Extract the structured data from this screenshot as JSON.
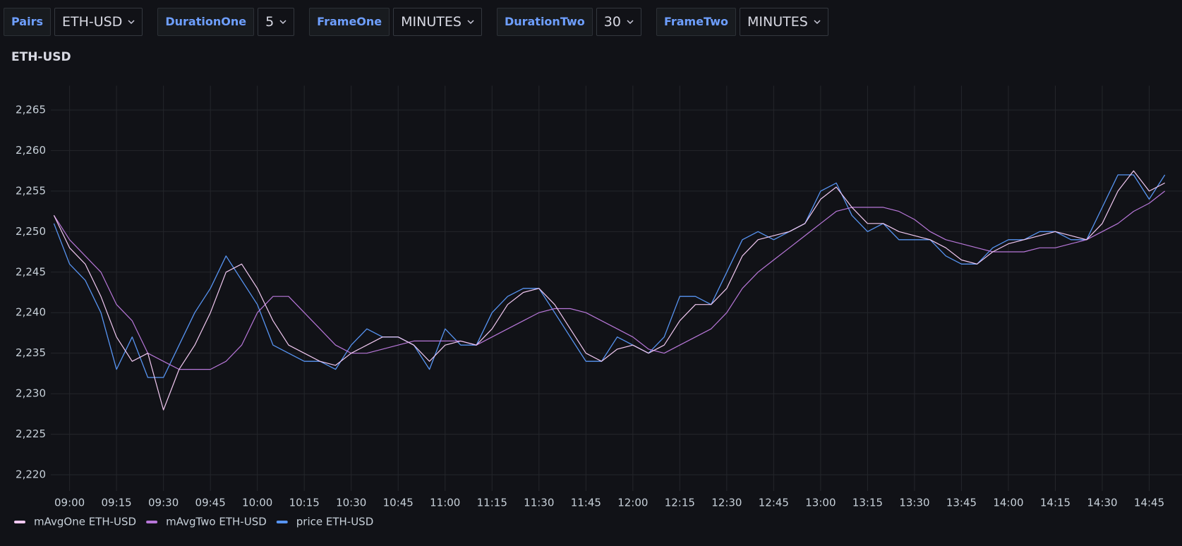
{
  "controls": [
    {
      "label": "Pairs",
      "value": "ETH-USD"
    },
    {
      "label": "DurationOne",
      "value": 5
    },
    {
      "label": "FrameOne",
      "value": "MINUTES"
    },
    {
      "label": "DurationTwo",
      "value": 30
    },
    {
      "label": "FrameTwo",
      "value": "MINUTES"
    }
  ],
  "chart_data": {
    "type": "line",
    "title": "ETH-USD",
    "x": [
      "08:55",
      "09:00",
      "09:05",
      "09:10",
      "09:15",
      "09:20",
      "09:25",
      "09:30",
      "09:35",
      "09:40",
      "09:45",
      "09:50",
      "09:55",
      "10:00",
      "10:05",
      "10:10",
      "10:15",
      "10:20",
      "10:25",
      "10:30",
      "10:35",
      "10:40",
      "10:45",
      "10:50",
      "10:55",
      "11:00",
      "11:05",
      "11:10",
      "11:15",
      "11:20",
      "11:25",
      "11:30",
      "11:35",
      "11:40",
      "11:45",
      "11:50",
      "11:55",
      "12:00",
      "12:05",
      "12:10",
      "12:15",
      "12:20",
      "12:25",
      "12:30",
      "12:35",
      "12:40",
      "12:45",
      "12:50",
      "12:55",
      "13:00",
      "13:05",
      "13:10",
      "13:15",
      "13:20",
      "13:25",
      "13:30",
      "13:35",
      "13:40",
      "13:45",
      "13:50",
      "13:55",
      "14:00",
      "14:05",
      "14:10",
      "14:15",
      "14:20",
      "14:25",
      "14:30",
      "14:35",
      "14:40",
      "14:45",
      "14:50"
    ],
    "series": [
      {
        "name": "mAvgOne ETH-USD",
        "color": "#f2c9f2",
        "values": [
          2252,
          2248,
          2246,
          2242,
          2237,
          2234,
          2235,
          2228,
          2233,
          2236,
          2240,
          2245,
          2246,
          2243,
          2239,
          2236,
          2235,
          2234,
          2233.5,
          2235,
          2236,
          2237,
          2237,
          2236,
          2234,
          2236,
          2236.5,
          2236,
          2238,
          2241,
          2242.5,
          2243,
          2241,
          2238,
          2235,
          2234,
          2235.5,
          2236,
          2235,
          2236,
          2239,
          2241,
          2241,
          2243,
          2247,
          2249,
          2249.5,
          2250,
          2251,
          2254,
          2255.5,
          2253,
          2251,
          2251,
          2250,
          2249.5,
          2249,
          2248,
          2246.5,
          2246,
          2247.5,
          2248.5,
          2249,
          2249.5,
          2250,
          2249.5,
          2249,
          2251,
          2255,
          2257.5,
          2255,
          2256
        ]
      },
      {
        "name": "mAvgTwo ETH-USD",
        "color": "#b877d9",
        "values": [
          2252,
          2249,
          2247,
          2245,
          2241,
          2239,
          2235,
          2234,
          2233,
          2233,
          2233,
          2234,
          2236,
          2240,
          2242,
          2242,
          2240,
          2238,
          2236,
          2235,
          2235,
          2235.5,
          2236,
          2236.5,
          2236.5,
          2236.5,
          2236.5,
          2236,
          2237,
          2238,
          2239,
          2240,
          2240.5,
          2240.5,
          2240,
          2239,
          2238,
          2237,
          2235.5,
          2235,
          2236,
          2237,
          2238,
          2240,
          2243,
          2245,
          2246.5,
          2248,
          2249.5,
          2251,
          2252.5,
          2253,
          2253,
          2253,
          2252.5,
          2251.5,
          2250,
          2249,
          2248.5,
          2248,
          2247.5,
          2247.5,
          2247.5,
          2248,
          2248,
          2248.5,
          2249,
          2250,
          2251,
          2252.5,
          2253.5,
          2255
        ]
      },
      {
        "name": "price ETH-USD",
        "color": "#5794f2",
        "values": [
          2251,
          2246,
          2244,
          2240,
          2233,
          2237,
          2232,
          2232,
          2236,
          2240,
          2243,
          2247,
          2244,
          2241,
          2236,
          2235,
          2234,
          2234,
          2233,
          2236,
          2238,
          2237,
          2237,
          2236,
          2233,
          2238,
          2236,
          2236,
          2240,
          2242,
          2243,
          2243,
          2240,
          2237,
          2234,
          2234,
          2237,
          2236,
          2235,
          2237,
          2242,
          2242,
          2241,
          2245,
          2249,
          2250,
          2249,
          2250,
          2251,
          2255,
          2256,
          2252,
          2250,
          2251,
          2249,
          2249,
          2249,
          2247,
          2246,
          2246,
          2248,
          2249,
          2249,
          2250,
          2250,
          2249,
          2249,
          2253,
          2257,
          2257,
          2254,
          2257
        ]
      }
    ],
    "xlim": [
      "08:54",
      "14:53"
    ],
    "xticks": [
      "09:00",
      "09:15",
      "09:30",
      "09:45",
      "10:00",
      "10:15",
      "10:30",
      "10:45",
      "11:00",
      "11:15",
      "11:30",
      "11:45",
      "12:00",
      "12:15",
      "12:30",
      "12:45",
      "13:00",
      "13:15",
      "13:30",
      "13:45",
      "14:00",
      "14:15",
      "14:30",
      "14:45"
    ],
    "ylim": [
      2218,
      2268
    ],
    "yticks": [
      {
        "value": 2220,
        "label": "2,220"
      },
      {
        "value": 2225,
        "label": "2,225"
      },
      {
        "value": 2230,
        "label": "2,230"
      },
      {
        "value": 2235,
        "label": "2,235"
      },
      {
        "value": 2240,
        "label": "2,240"
      },
      {
        "value": 2245,
        "label": "2,245"
      },
      {
        "value": 2250,
        "label": "2,250"
      },
      {
        "value": 2255,
        "label": "2,255"
      },
      {
        "value": 2260,
        "label": "2,260"
      },
      {
        "value": 2265,
        "label": "2,265"
      }
    ],
    "grid": true,
    "legend": "bottom-left"
  }
}
